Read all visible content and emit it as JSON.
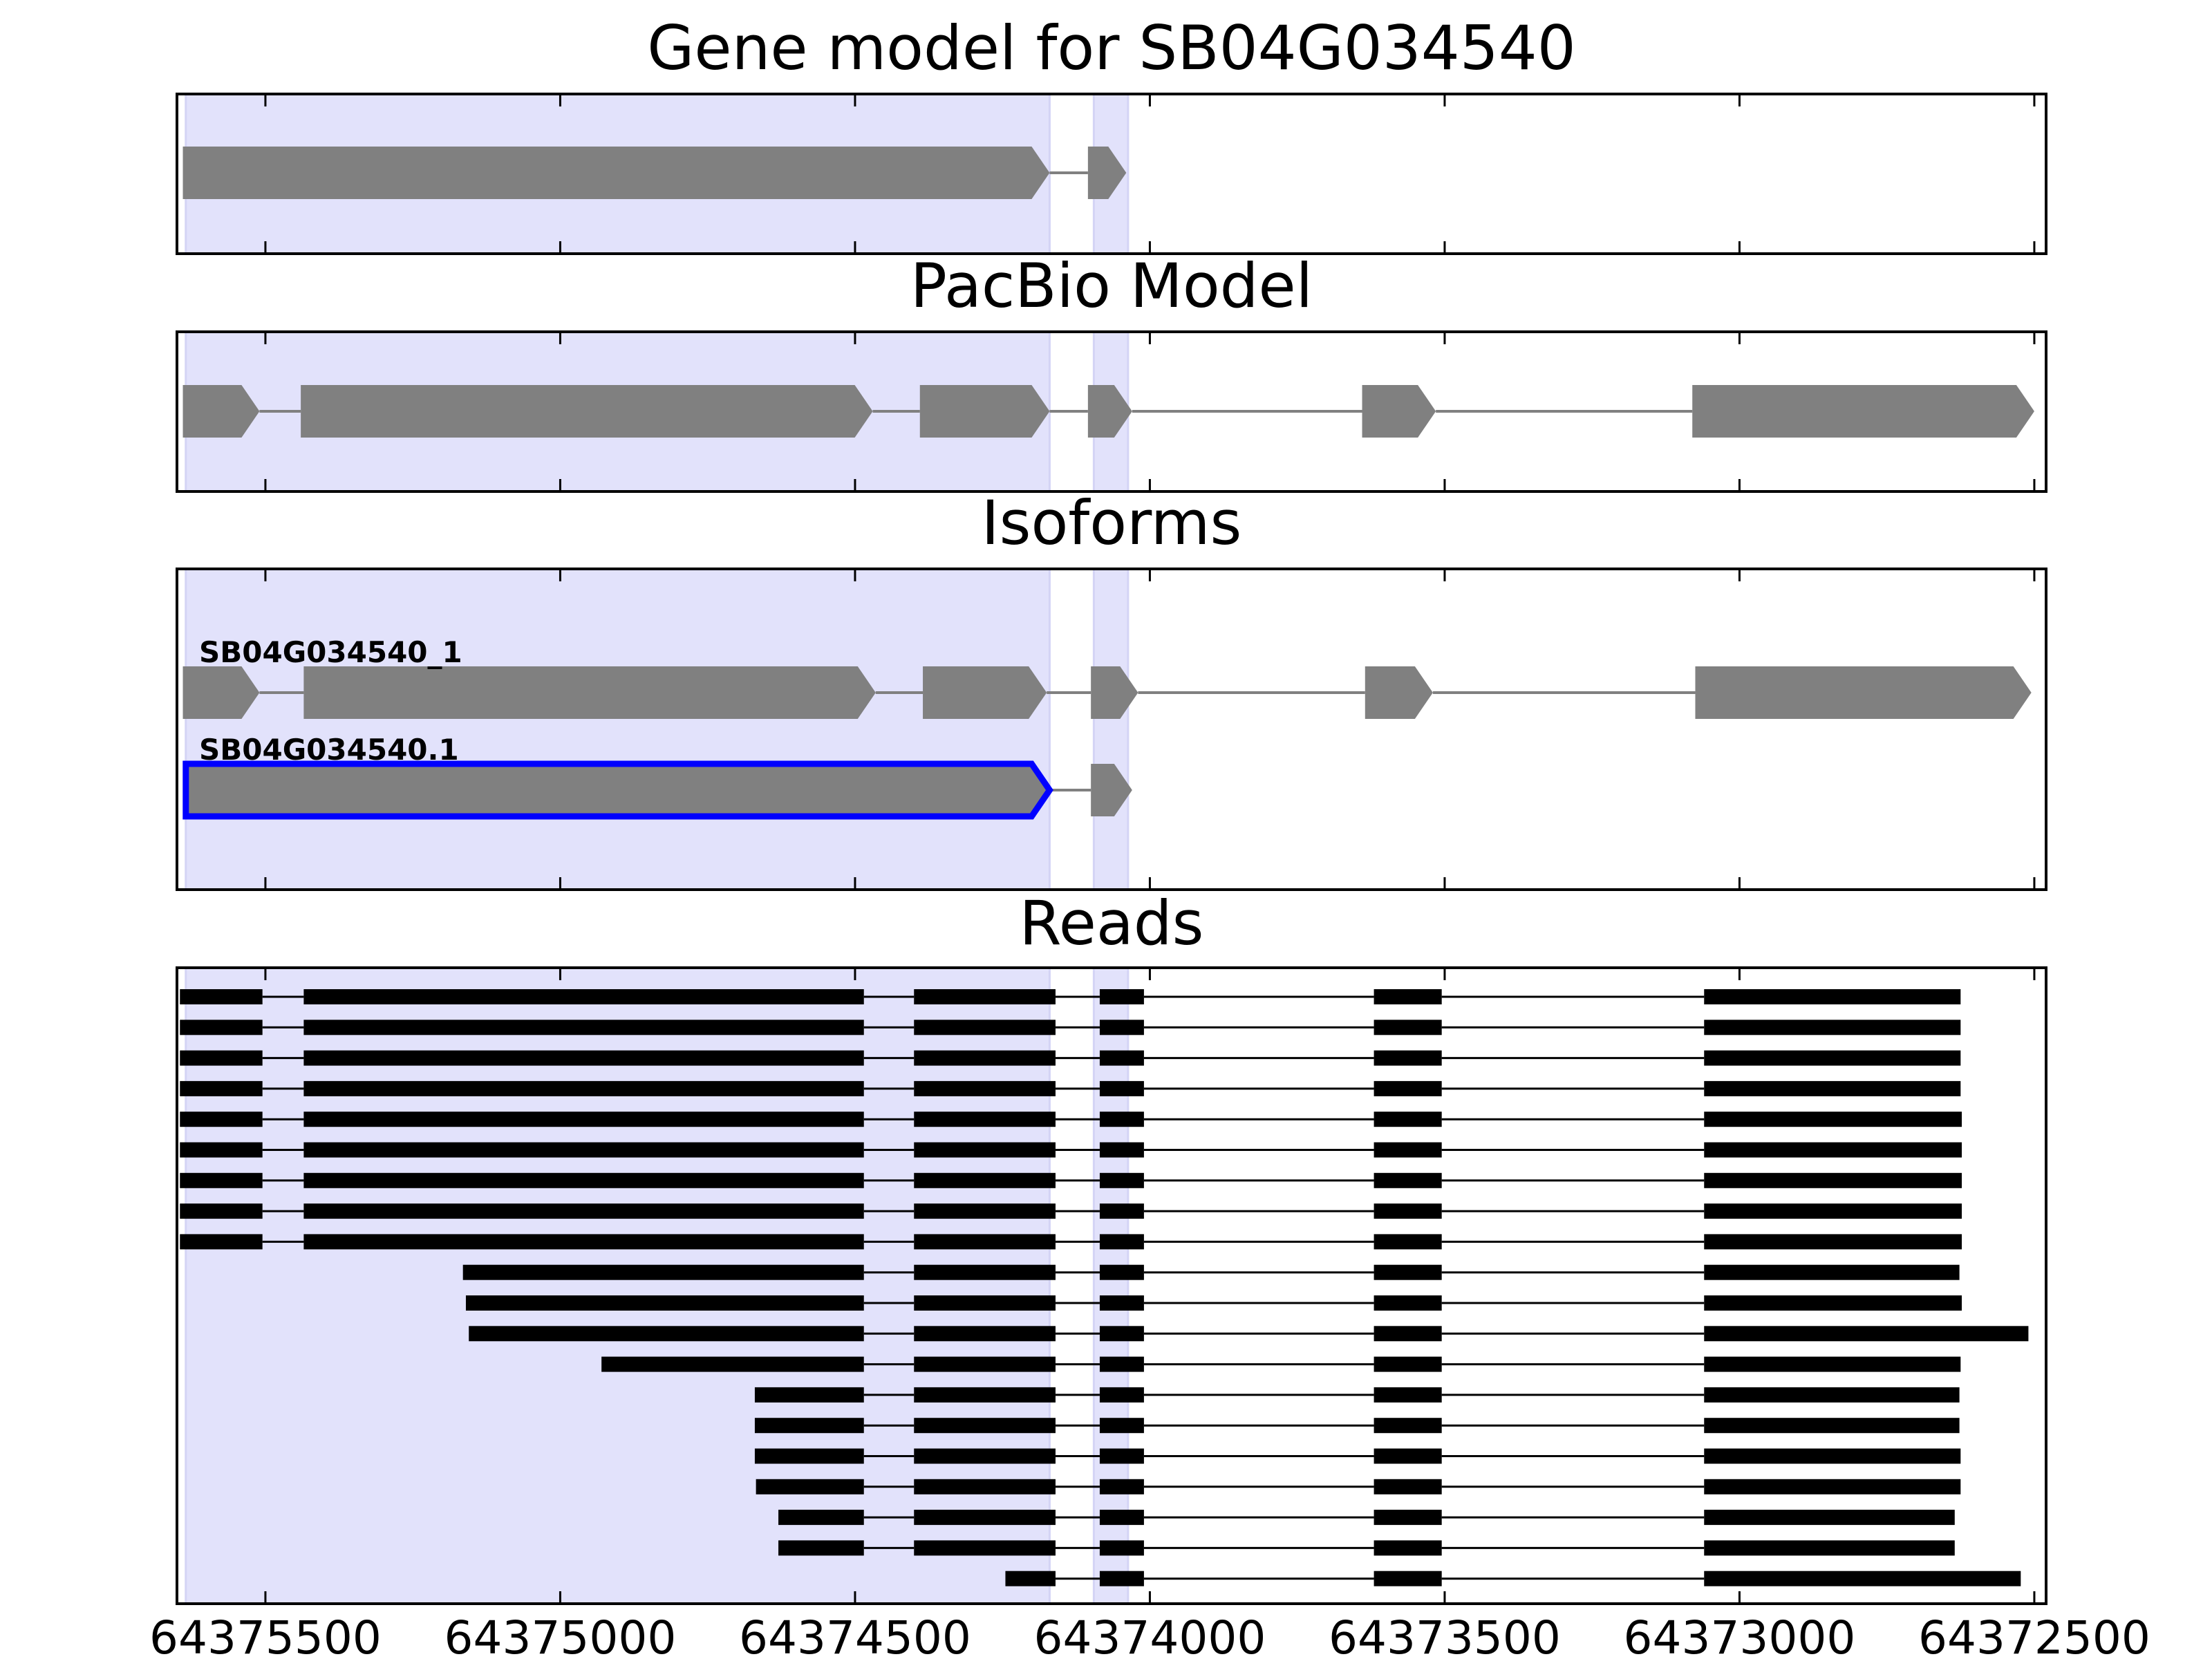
{
  "colors": {
    "highlight": "#e2e2fb",
    "highlight_edge": "#d4d4f5",
    "feature_fill": "#808080",
    "intron": "#808080",
    "read": "#000000",
    "selected_outline": "#0000ff",
    "frame": "#000000"
  },
  "chart_data": {
    "type": "gene-model-tracks",
    "x_axis": {
      "reversed": true,
      "xlim": [
        64375650,
        64372480
      ],
      "ticks": [
        64375500,
        64375000,
        64374500,
        64374000,
        64373500,
        64373000,
        64372500
      ],
      "tick_labels": [
        "64375500",
        "64375000",
        "64374500",
        "64374000",
        "64373500",
        "64373000",
        "64372500"
      ]
    },
    "highlighted_exon_regions": [
      [
        64375635,
        64374170
      ],
      [
        64374095,
        64374037
      ]
    ],
    "panels": [
      {
        "id": "gene-model",
        "title": "Gene model for SB04G034540",
        "rows": [
          {
            "label": "",
            "selected": false,
            "exons": [
              [
                64375640,
                64374170
              ],
              [
                64374105,
                64374040
              ]
            ]
          }
        ]
      },
      {
        "id": "pacbio-model",
        "title": "PacBio Model",
        "rows": [
          {
            "label": "",
            "selected": false,
            "exons": [
              [
                64375640,
                64375510
              ],
              [
                64375440,
                64374470
              ],
              [
                64374390,
                64374170
              ],
              [
                64374105,
                64374030
              ],
              [
                64373640,
                64373515
              ],
              [
                64373080,
                64372500
              ]
            ]
          }
        ]
      },
      {
        "id": "isoforms",
        "title": "Isoforms",
        "rows": [
          {
            "label": "SB04G034540_1",
            "selected": false,
            "exons": [
              [
                64375640,
                64375510
              ],
              [
                64375435,
                64374465
              ],
              [
                64374385,
                64374175
              ],
              [
                64374100,
                64374020
              ],
              [
                64373635,
                64373520
              ],
              [
                64373075,
                64372505
              ]
            ]
          },
          {
            "label": "SB04G034540.1",
            "selected": true,
            "exons": [
              [
                64375635,
                64374170
              ],
              [
                64374100,
                64374030
              ]
            ]
          }
        ]
      },
      {
        "id": "reads",
        "title": "Reads",
        "rows": [
          {
            "exons": [
              [
                64375645,
                64375505
              ],
              [
                64375435,
                64374485
              ],
              [
                64374400,
                64374160
              ],
              [
                64374085,
                64374010
              ],
              [
                64373620,
                64373505
              ],
              [
                64373060,
                64372625
              ]
            ]
          },
          {
            "exons": [
              [
                64375645,
                64375505
              ],
              [
                64375435,
                64374485
              ],
              [
                64374400,
                64374160
              ],
              [
                64374085,
                64374010
              ],
              [
                64373620,
                64373505
              ],
              [
                64373060,
                64372625
              ]
            ]
          },
          {
            "exons": [
              [
                64375645,
                64375505
              ],
              [
                64375435,
                64374485
              ],
              [
                64374400,
                64374160
              ],
              [
                64374085,
                64374010
              ],
              [
                64373620,
                64373505
              ],
              [
                64373060,
                64372625
              ]
            ]
          },
          {
            "exons": [
              [
                64375645,
                64375505
              ],
              [
                64375435,
                64374485
              ],
              [
                64374400,
                64374160
              ],
              [
                64374085,
                64374010
              ],
              [
                64373620,
                64373505
              ],
              [
                64373060,
                64372625
              ]
            ]
          },
          {
            "exons": [
              [
                64375645,
                64375505
              ],
              [
                64375435,
                64374485
              ],
              [
                64374400,
                64374160
              ],
              [
                64374085,
                64374010
              ],
              [
                64373620,
                64373505
              ],
              [
                64373060,
                64372623
              ]
            ]
          },
          {
            "exons": [
              [
                64375645,
                64375505
              ],
              [
                64375435,
                64374485
              ],
              [
                64374400,
                64374160
              ],
              [
                64374085,
                64374010
              ],
              [
                64373620,
                64373505
              ],
              [
                64373060,
                64372623
              ]
            ]
          },
          {
            "exons": [
              [
                64375645,
                64375505
              ],
              [
                64375435,
                64374485
              ],
              [
                64374400,
                64374160
              ],
              [
                64374085,
                64374010
              ],
              [
                64373620,
                64373505
              ],
              [
                64373060,
                64372623
              ]
            ]
          },
          {
            "exons": [
              [
                64375645,
                64375505
              ],
              [
                64375435,
                64374485
              ],
              [
                64374400,
                64374160
              ],
              [
                64374085,
                64374010
              ],
              [
                64373620,
                64373505
              ],
              [
                64373060,
                64372623
              ]
            ]
          },
          {
            "exons": [
              [
                64375645,
                64375505
              ],
              [
                64375435,
                64374485
              ],
              [
                64374400,
                64374160
              ],
              [
                64374085,
                64374010
              ],
              [
                64373620,
                64373505
              ],
              [
                64373060,
                64372623
              ]
            ]
          },
          {
            "exons": [
              [
                64375165,
                64374485
              ],
              [
                64374400,
                64374160
              ],
              [
                64374085,
                64374010
              ],
              [
                64373620,
                64373505
              ],
              [
                64373060,
                64372627
              ]
            ]
          },
          {
            "exons": [
              [
                64375160,
                64374485
              ],
              [
                64374400,
                64374160
              ],
              [
                64374085,
                64374010
              ],
              [
                64373620,
                64373505
              ],
              [
                64373060,
                64372623
              ]
            ]
          },
          {
            "exons": [
              [
                64375155,
                64374485
              ],
              [
                64374400,
                64374160
              ],
              [
                64374085,
                64374010
              ],
              [
                64373620,
                64373505
              ],
              [
                64373060,
                64372510
              ]
            ]
          },
          {
            "exons": [
              [
                64374930,
                64374485
              ],
              [
                64374400,
                64374160
              ],
              [
                64374085,
                64374010
              ],
              [
                64373620,
                64373505
              ],
              [
                64373060,
                64372625
              ]
            ]
          },
          {
            "exons": [
              [
                64374670,
                64374485
              ],
              [
                64374400,
                64374160
              ],
              [
                64374085,
                64374010
              ],
              [
                64373620,
                64373505
              ],
              [
                64373060,
                64372627
              ]
            ]
          },
          {
            "exons": [
              [
                64374670,
                64374485
              ],
              [
                64374400,
                64374160
              ],
              [
                64374085,
                64374010
              ],
              [
                64373620,
                64373505
              ],
              [
                64373060,
                64372627
              ]
            ]
          },
          {
            "exons": [
              [
                64374670,
                64374485
              ],
              [
                64374400,
                64374160
              ],
              [
                64374085,
                64374010
              ],
              [
                64373620,
                64373505
              ],
              [
                64373060,
                64372625
              ]
            ]
          },
          {
            "exons": [
              [
                64374668,
                64374485
              ],
              [
                64374400,
                64374160
              ],
              [
                64374085,
                64374010
              ],
              [
                64373620,
                64373505
              ],
              [
                64373060,
                64372625
              ]
            ]
          },
          {
            "exons": [
              [
                64374630,
                64374485
              ],
              [
                64374400,
                64374160
              ],
              [
                64374085,
                64374010
              ],
              [
                64373620,
                64373505
              ],
              [
                64373060,
                64372635
              ]
            ]
          },
          {
            "exons": [
              [
                64374630,
                64374485
              ],
              [
                64374400,
                64374160
              ],
              [
                64374085,
                64374010
              ],
              [
                64373620,
                64373505
              ],
              [
                64373060,
                64372635
              ]
            ]
          },
          {
            "exons": [
              [
                64374245,
                64374160
              ],
              [
                64374085,
                64374010
              ],
              [
                64373620,
                64373505
              ],
              [
                64373060,
                64372523
              ]
            ]
          }
        ]
      }
    ]
  }
}
